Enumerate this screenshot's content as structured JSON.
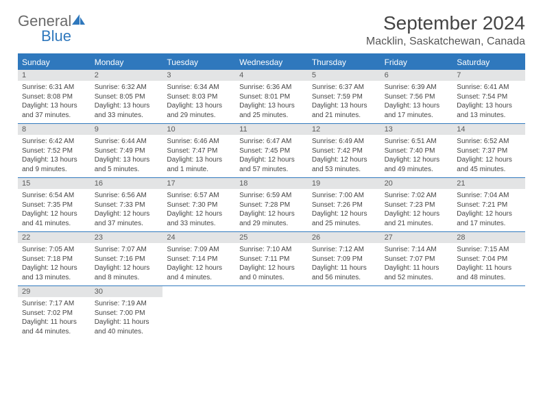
{
  "logo": {
    "general": "General",
    "blue": "Blue"
  },
  "title": "September 2024",
  "location": "Macklin, Saskatchewan, Canada",
  "header_color": "#2f78bd",
  "day_headers": [
    "Sunday",
    "Monday",
    "Tuesday",
    "Wednesday",
    "Thursday",
    "Friday",
    "Saturday"
  ],
  "weeks": [
    [
      {
        "num": "1",
        "sunrise": "Sunrise: 6:31 AM",
        "sunset": "Sunset: 8:08 PM",
        "daylight": "Daylight: 13 hours and 37 minutes."
      },
      {
        "num": "2",
        "sunrise": "Sunrise: 6:32 AM",
        "sunset": "Sunset: 8:05 PM",
        "daylight": "Daylight: 13 hours and 33 minutes."
      },
      {
        "num": "3",
        "sunrise": "Sunrise: 6:34 AM",
        "sunset": "Sunset: 8:03 PM",
        "daylight": "Daylight: 13 hours and 29 minutes."
      },
      {
        "num": "4",
        "sunrise": "Sunrise: 6:36 AM",
        "sunset": "Sunset: 8:01 PM",
        "daylight": "Daylight: 13 hours and 25 minutes."
      },
      {
        "num": "5",
        "sunrise": "Sunrise: 6:37 AM",
        "sunset": "Sunset: 7:59 PM",
        "daylight": "Daylight: 13 hours and 21 minutes."
      },
      {
        "num": "6",
        "sunrise": "Sunrise: 6:39 AM",
        "sunset": "Sunset: 7:56 PM",
        "daylight": "Daylight: 13 hours and 17 minutes."
      },
      {
        "num": "7",
        "sunrise": "Sunrise: 6:41 AM",
        "sunset": "Sunset: 7:54 PM",
        "daylight": "Daylight: 13 hours and 13 minutes."
      }
    ],
    [
      {
        "num": "8",
        "sunrise": "Sunrise: 6:42 AM",
        "sunset": "Sunset: 7:52 PM",
        "daylight": "Daylight: 13 hours and 9 minutes."
      },
      {
        "num": "9",
        "sunrise": "Sunrise: 6:44 AM",
        "sunset": "Sunset: 7:49 PM",
        "daylight": "Daylight: 13 hours and 5 minutes."
      },
      {
        "num": "10",
        "sunrise": "Sunrise: 6:46 AM",
        "sunset": "Sunset: 7:47 PM",
        "daylight": "Daylight: 13 hours and 1 minute."
      },
      {
        "num": "11",
        "sunrise": "Sunrise: 6:47 AM",
        "sunset": "Sunset: 7:45 PM",
        "daylight": "Daylight: 12 hours and 57 minutes."
      },
      {
        "num": "12",
        "sunrise": "Sunrise: 6:49 AM",
        "sunset": "Sunset: 7:42 PM",
        "daylight": "Daylight: 12 hours and 53 minutes."
      },
      {
        "num": "13",
        "sunrise": "Sunrise: 6:51 AM",
        "sunset": "Sunset: 7:40 PM",
        "daylight": "Daylight: 12 hours and 49 minutes."
      },
      {
        "num": "14",
        "sunrise": "Sunrise: 6:52 AM",
        "sunset": "Sunset: 7:37 PM",
        "daylight": "Daylight: 12 hours and 45 minutes."
      }
    ],
    [
      {
        "num": "15",
        "sunrise": "Sunrise: 6:54 AM",
        "sunset": "Sunset: 7:35 PM",
        "daylight": "Daylight: 12 hours and 41 minutes."
      },
      {
        "num": "16",
        "sunrise": "Sunrise: 6:56 AM",
        "sunset": "Sunset: 7:33 PM",
        "daylight": "Daylight: 12 hours and 37 minutes."
      },
      {
        "num": "17",
        "sunrise": "Sunrise: 6:57 AM",
        "sunset": "Sunset: 7:30 PM",
        "daylight": "Daylight: 12 hours and 33 minutes."
      },
      {
        "num": "18",
        "sunrise": "Sunrise: 6:59 AM",
        "sunset": "Sunset: 7:28 PM",
        "daylight": "Daylight: 12 hours and 29 minutes."
      },
      {
        "num": "19",
        "sunrise": "Sunrise: 7:00 AM",
        "sunset": "Sunset: 7:26 PM",
        "daylight": "Daylight: 12 hours and 25 minutes."
      },
      {
        "num": "20",
        "sunrise": "Sunrise: 7:02 AM",
        "sunset": "Sunset: 7:23 PM",
        "daylight": "Daylight: 12 hours and 21 minutes."
      },
      {
        "num": "21",
        "sunrise": "Sunrise: 7:04 AM",
        "sunset": "Sunset: 7:21 PM",
        "daylight": "Daylight: 12 hours and 17 minutes."
      }
    ],
    [
      {
        "num": "22",
        "sunrise": "Sunrise: 7:05 AM",
        "sunset": "Sunset: 7:18 PM",
        "daylight": "Daylight: 12 hours and 13 minutes."
      },
      {
        "num": "23",
        "sunrise": "Sunrise: 7:07 AM",
        "sunset": "Sunset: 7:16 PM",
        "daylight": "Daylight: 12 hours and 8 minutes."
      },
      {
        "num": "24",
        "sunrise": "Sunrise: 7:09 AM",
        "sunset": "Sunset: 7:14 PM",
        "daylight": "Daylight: 12 hours and 4 minutes."
      },
      {
        "num": "25",
        "sunrise": "Sunrise: 7:10 AM",
        "sunset": "Sunset: 7:11 PM",
        "daylight": "Daylight: 12 hours and 0 minutes."
      },
      {
        "num": "26",
        "sunrise": "Sunrise: 7:12 AM",
        "sunset": "Sunset: 7:09 PM",
        "daylight": "Daylight: 11 hours and 56 minutes."
      },
      {
        "num": "27",
        "sunrise": "Sunrise: 7:14 AM",
        "sunset": "Sunset: 7:07 PM",
        "daylight": "Daylight: 11 hours and 52 minutes."
      },
      {
        "num": "28",
        "sunrise": "Sunrise: 7:15 AM",
        "sunset": "Sunset: 7:04 PM",
        "daylight": "Daylight: 11 hours and 48 minutes."
      }
    ],
    [
      {
        "num": "29",
        "sunrise": "Sunrise: 7:17 AM",
        "sunset": "Sunset: 7:02 PM",
        "daylight": "Daylight: 11 hours and 44 minutes."
      },
      {
        "num": "30",
        "sunrise": "Sunrise: 7:19 AM",
        "sunset": "Sunset: 7:00 PM",
        "daylight": "Daylight: 11 hours and 40 minutes."
      },
      null,
      null,
      null,
      null,
      null
    ]
  ]
}
